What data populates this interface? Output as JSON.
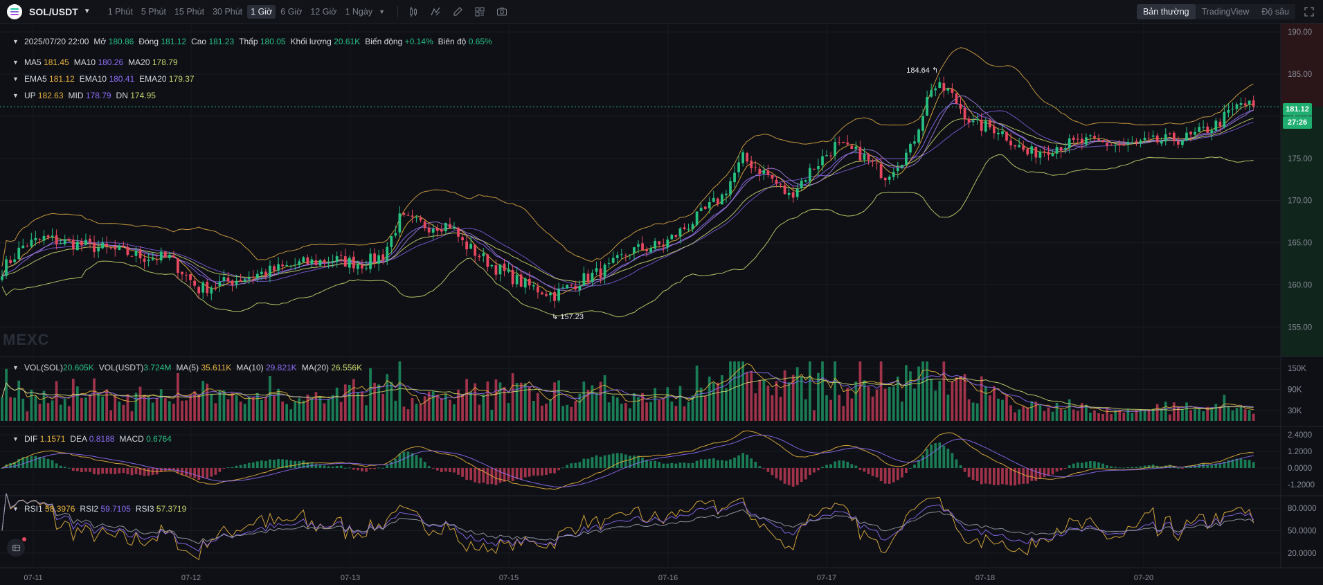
{
  "header": {
    "pair": "SOL/USDT",
    "intervals": [
      "1 Phút",
      "5 Phút",
      "15 Phút",
      "30 Phút",
      "1 Giờ",
      "6 Giờ",
      "12 Giờ",
      "1 Ngày"
    ],
    "active_interval": "1 Giờ",
    "view_modes": [
      "Bản thường",
      "TradingView",
      "Độ sâu"
    ],
    "active_view": "Bản thường",
    "tool_icons": [
      "candle-type-icon",
      "indicator-icon",
      "draw-icon",
      "layout-icon",
      "camera-icon"
    ]
  },
  "legend": {
    "ohlc": {
      "date": "2025/07/20 22:00",
      "open_label": "Mở",
      "open": "180.86",
      "close_label": "Đóng",
      "close": "181.12",
      "high_label": "Cao",
      "high": "181.23",
      "low_label": "Thấp",
      "low": "180.05",
      "vol_label": "Khối lượng",
      "vol": "20.61K",
      "change_label": "Biến động",
      "change": "+0.14%",
      "amp_label": "Biên độ",
      "amp": "0.65%"
    },
    "ma": {
      "ma5_label": "MA5",
      "ma5": "181.45",
      "ma10_label": "MA10",
      "ma10": "180.26",
      "ma20_label": "MA20",
      "ma20": "178.79"
    },
    "ema": {
      "ema5_label": "EMA5",
      "ema5": "181.12",
      "ema10_label": "EMA10",
      "ema10": "180.41",
      "ema20_label": "EMA20",
      "ema20": "179.37"
    },
    "boll": {
      "up_label": "UP",
      "up": "182.63",
      "mid_label": "MID",
      "mid": "178.79",
      "dn_label": "DN",
      "dn": "174.95"
    },
    "vol": {
      "sol_label": "VOL(SOL)",
      "sol": "20.605K",
      "usdt_label": "VOL(USDT)",
      "usdt": "3.724M",
      "ma5_label": "MA(5)",
      "ma5": "35.611K",
      "ma10_label": "MA(10)",
      "ma10": "29.821K",
      "ma20_label": "MA(20)",
      "ma20": "26.556K"
    },
    "macd": {
      "dif_label": "DIF",
      "dif": "1.1571",
      "dea_label": "DEA",
      "dea": "0.8188",
      "macd_label": "MACD",
      "macd": "0.6764"
    },
    "rsi": {
      "rsi1_label": "RSI1",
      "rsi1": "58.3976",
      "rsi2_label": "RSI2",
      "rsi2": "59.7105",
      "rsi3_label": "RSI3",
      "rsi3": "57.3719"
    }
  },
  "current_price": "181.12",
  "countdown": "27:26",
  "high_marker": "184.64",
  "low_marker": "157.23",
  "watermark": "MEXC",
  "colors": {
    "up": "#27c081",
    "down": "#e8485f",
    "bg": "#0e1016",
    "ma5": "#e8b33c",
    "ma10": "#8f6df5",
    "ma20": "#c9d46b",
    "boll": "#d9a441"
  },
  "chart_data": {
    "type": "candlestick",
    "price_axis": {
      "ticks": [
        190,
        185,
        180,
        175,
        170,
        165,
        160,
        155
      ],
      "labels": [
        "190.00",
        "185.00",
        "180.00",
        "175.00",
        "170.00",
        "165.00",
        "160.00",
        "155.00"
      ],
      "range": [
        151.5,
        190.5
      ]
    },
    "volume_axis": {
      "labels": [
        "150K",
        "90K",
        "30K"
      ],
      "ticks": [
        150000,
        90000,
        30000
      ],
      "range": [
        0,
        180000
      ]
    },
    "macd_axis": {
      "labels": [
        "2.4000",
        "1.2000",
        "0.0000",
        "-1.2000"
      ],
      "ticks": [
        2.4,
        1.2,
        0,
        -1.2
      ],
      "range": [
        -1.8,
        2.9
      ]
    },
    "rsi_axis": {
      "labels": [
        "80.0000",
        "50.0000",
        "20.0000"
      ],
      "ticks": [
        80,
        50,
        20
      ],
      "range": [
        5,
        95
      ]
    },
    "x_axis": {
      "labels": [
        "07-11",
        "07-12",
        "07-13",
        "07-15",
        "07-16",
        "07-17",
        "07-18",
        "07-20"
      ]
    },
    "keypoints": [
      {
        "t": 0,
        "p": 161.8
      },
      {
        "t": 5,
        "p": 164.6
      },
      {
        "t": 10,
        "p": 165.5
      },
      {
        "t": 16,
        "p": 165.0
      },
      {
        "t": 22,
        "p": 164.5
      },
      {
        "t": 28,
        "p": 164.0
      },
      {
        "t": 34,
        "p": 163.3
      },
      {
        "t": 40,
        "p": 163.2
      },
      {
        "t": 47,
        "p": 159.5
      },
      {
        "t": 55,
        "p": 160.5
      },
      {
        "t": 63,
        "p": 161.5
      },
      {
        "t": 71,
        "p": 162.5
      },
      {
        "t": 79,
        "p": 163.0
      },
      {
        "t": 86,
        "p": 162.5
      },
      {
        "t": 91,
        "p": 163.5
      },
      {
        "t": 95,
        "p": 167.8
      },
      {
        "t": 102,
        "p": 167.0
      },
      {
        "t": 107,
        "p": 167.2
      },
      {
        "t": 110,
        "p": 165.0
      },
      {
        "t": 118,
        "p": 162.0
      },
      {
        "t": 125,
        "p": 160.0
      },
      {
        "t": 132,
        "p": 158.8
      },
      {
        "t": 138,
        "p": 160.5
      },
      {
        "t": 145,
        "p": 162.0
      },
      {
        "t": 150,
        "p": 164.0
      },
      {
        "t": 158,
        "p": 164.8
      },
      {
        "t": 165,
        "p": 167.5
      },
      {
        "t": 172,
        "p": 170.5
      },
      {
        "t": 177,
        "p": 175.0
      },
      {
        "t": 183,
        "p": 173.0
      },
      {
        "t": 188,
        "p": 170.5
      },
      {
        "t": 193,
        "p": 173.5
      },
      {
        "t": 199,
        "p": 176.5
      },
      {
        "t": 205,
        "p": 175.5
      },
      {
        "t": 211,
        "p": 173.0
      },
      {
        "t": 217,
        "p": 176.0
      },
      {
        "t": 222,
        "p": 183.5
      },
      {
        "t": 226,
        "p": 183.0
      },
      {
        "t": 232,
        "p": 179.0
      },
      {
        "t": 238,
        "p": 178.5
      },
      {
        "t": 245,
        "p": 175.5
      },
      {
        "t": 252,
        "p": 176.5
      },
      {
        "t": 260,
        "p": 177.0
      },
      {
        "t": 268,
        "p": 176.5
      },
      {
        "t": 276,
        "p": 177.0
      },
      {
        "t": 284,
        "p": 177.5
      },
      {
        "t": 290,
        "p": 179.0
      },
      {
        "t": 296,
        "p": 181.5
      },
      {
        "t": 299,
        "p": 181.12
      }
    ],
    "extremes": {
      "high": 184.64,
      "low": 157.23
    }
  }
}
